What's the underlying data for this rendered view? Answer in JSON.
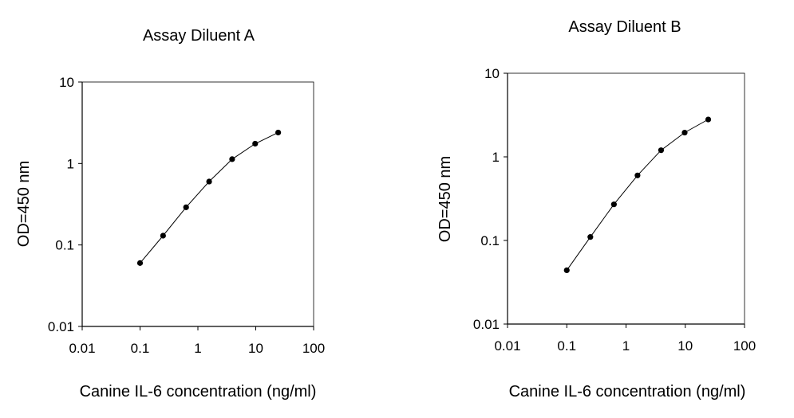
{
  "chart_data": [
    {
      "type": "line",
      "title": "Assay Diluent A",
      "xlabel": "Canine IL-6 concentration (ng/ml)",
      "ylabel": "OD=450 nm",
      "xscale": "log",
      "yscale": "log",
      "xlim": [
        0.01,
        100
      ],
      "ylim": [
        0.01,
        10
      ],
      "x_ticks": [
        "0.01",
        "0.1",
        "1",
        "10",
        "100"
      ],
      "y_ticks": [
        "0.01",
        "0.1",
        "1",
        "10"
      ],
      "grid": false,
      "series": [
        {
          "x": [
            0.1,
            0.25,
            0.625,
            1.563,
            3.906,
            9.766,
            24.414
          ],
          "y": [
            0.06,
            0.13,
            0.29,
            0.6,
            1.13,
            1.75,
            2.4
          ]
        }
      ]
    },
    {
      "type": "line",
      "title": "Assay Diluent B",
      "xlabel": "Canine IL-6 concentration (ng/ml)",
      "ylabel": "OD=450 nm",
      "xscale": "log",
      "yscale": "log",
      "xlim": [
        0.01,
        100
      ],
      "ylim": [
        0.01,
        10
      ],
      "x_ticks": [
        "0.01",
        "0.1",
        "1",
        "10",
        "100"
      ],
      "y_ticks": [
        "0.01",
        "0.1",
        "1",
        "10"
      ],
      "grid": false,
      "series": [
        {
          "x": [
            0.1,
            0.25,
            0.625,
            1.563,
            3.906,
            9.766,
            24.414
          ],
          "y": [
            0.044,
            0.11,
            0.27,
            0.6,
            1.2,
            1.95,
            2.8
          ]
        }
      ]
    }
  ]
}
